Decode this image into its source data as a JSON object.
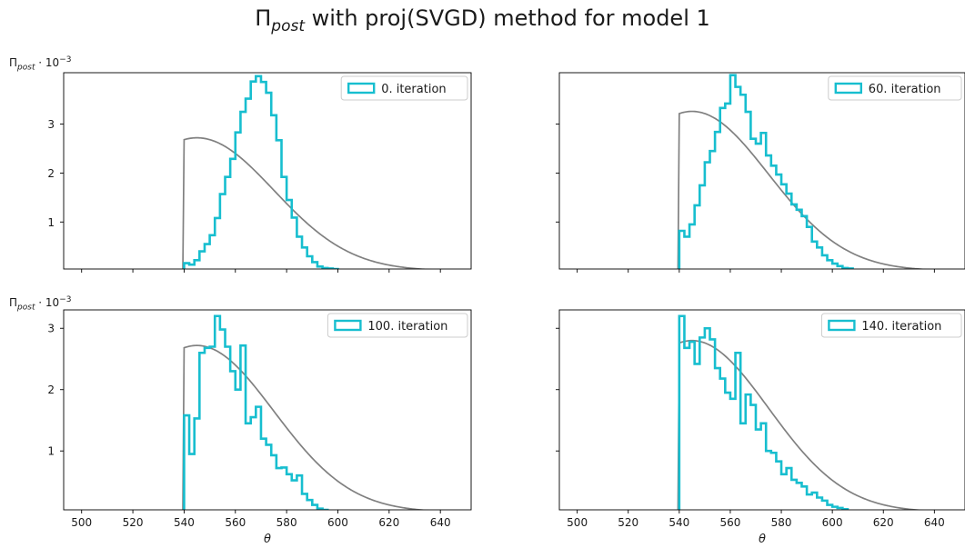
{
  "figure": {
    "title_main": "Π",
    "title_sub": "post",
    "title_rest": " with proj(SVGD) method for model 1"
  },
  "ylabel_parts": {
    "main": "Π",
    "sub": "post",
    "mid": " · 10",
    "sup": "−3"
  },
  "colors": {
    "prior": "#808080",
    "hist": "#17becf"
  },
  "prior_curve": {
    "start": 540,
    "peak_x": 545,
    "sigma": 30
  },
  "chart_data": [
    {
      "type": "line",
      "legend": "0. iteration",
      "legend_placement": "top-right",
      "xlim": [
        493,
        652
      ],
      "ylim": [
        0.04,
        4.05
      ],
      "xticks": [
        500,
        520,
        540,
        560,
        580,
        600,
        620,
        640
      ],
      "xtick_labels": false,
      "yticks": [
        1,
        2,
        3
      ],
      "ytick_labels": true,
      "ylabel": true,
      "xlabel": "",
      "prior_peak": 2.72,
      "histogram": {
        "bin_start": 540,
        "bin_width": 2,
        "heights": [
          0.16,
          0.13,
          0.22,
          0.4,
          0.55,
          0.73,
          1.08,
          1.57,
          1.92,
          2.29,
          2.83,
          3.25,
          3.52,
          3.87,
          3.98,
          3.86,
          3.64,
          3.18,
          2.67,
          1.92,
          1.45,
          1.09,
          0.7,
          0.48,
          0.3,
          0.18,
          0.09,
          0.06,
          0.05,
          0.04
        ]
      }
    },
    {
      "type": "line",
      "legend": "60. iteration",
      "legend_placement": "top-right",
      "xlim": [
        493,
        652
      ],
      "ylim": [
        0.04,
        4.05
      ],
      "xticks": [
        500,
        520,
        540,
        560,
        580,
        600,
        620,
        640
      ],
      "xtick_labels": false,
      "yticks": [
        1,
        2,
        3
      ],
      "ytick_labels": false,
      "ylabel": false,
      "xlabel": "",
      "prior_peak": 3.26,
      "histogram": {
        "bin_start": 540,
        "bin_width": 2,
        "heights": [
          0.82,
          0.7,
          0.95,
          1.34,
          1.75,
          2.22,
          2.45,
          2.84,
          3.33,
          3.42,
          4.0,
          3.76,
          3.6,
          3.25,
          2.7,
          2.6,
          2.82,
          2.36,
          2.15,
          1.97,
          1.77,
          1.58,
          1.36,
          1.25,
          1.12,
          0.9,
          0.6,
          0.48,
          0.32,
          0.22,
          0.15,
          0.1,
          0.06,
          0.05
        ]
      }
    },
    {
      "type": "line",
      "legend": "100. iteration",
      "legend_placement": "top-right",
      "xlim": [
        493,
        652
      ],
      "ylim": [
        0.04,
        3.3
      ],
      "xticks": [
        500,
        520,
        540,
        560,
        580,
        600,
        620,
        640
      ],
      "xtick_labels": true,
      "yticks": [
        1,
        2,
        3
      ],
      "ytick_labels": true,
      "ylabel": true,
      "xlabel": "θ",
      "prior_peak": 2.72,
      "histogram": {
        "bin_start": 540,
        "bin_width": 2,
        "heights": [
          1.58,
          0.95,
          1.53,
          2.6,
          2.68,
          2.7,
          3.2,
          2.98,
          2.7,
          2.3,
          2.0,
          2.72,
          1.45,
          1.55,
          1.72,
          1.2,
          1.1,
          0.93,
          0.72,
          0.73,
          0.62,
          0.52,
          0.6,
          0.3,
          0.2,
          0.12,
          0.06,
          0.04
        ]
      }
    },
    {
      "type": "line",
      "legend": "140. iteration",
      "legend_placement": "top-right",
      "xlim": [
        493,
        652
      ],
      "ylim": [
        0.04,
        3.3
      ],
      "xticks": [
        500,
        520,
        540,
        560,
        580,
        600,
        620,
        640
      ],
      "xtick_labels": true,
      "yticks": [
        1,
        2,
        3
      ],
      "ytick_labels": false,
      "ylabel": false,
      "xlabel": "θ",
      "prior_peak": 2.8,
      "histogram": {
        "bin_start": 540,
        "bin_width": 2,
        "heights": [
          3.2,
          2.68,
          2.78,
          2.42,
          2.85,
          3.0,
          2.82,
          2.35,
          2.18,
          1.95,
          1.85,
          2.6,
          1.45,
          1.92,
          1.75,
          1.35,
          1.45,
          1.0,
          0.97,
          0.83,
          0.62,
          0.72,
          0.53,
          0.48,
          0.42,
          0.29,
          0.32,
          0.24,
          0.19,
          0.12,
          0.09,
          0.07,
          0.05
        ]
      }
    }
  ]
}
